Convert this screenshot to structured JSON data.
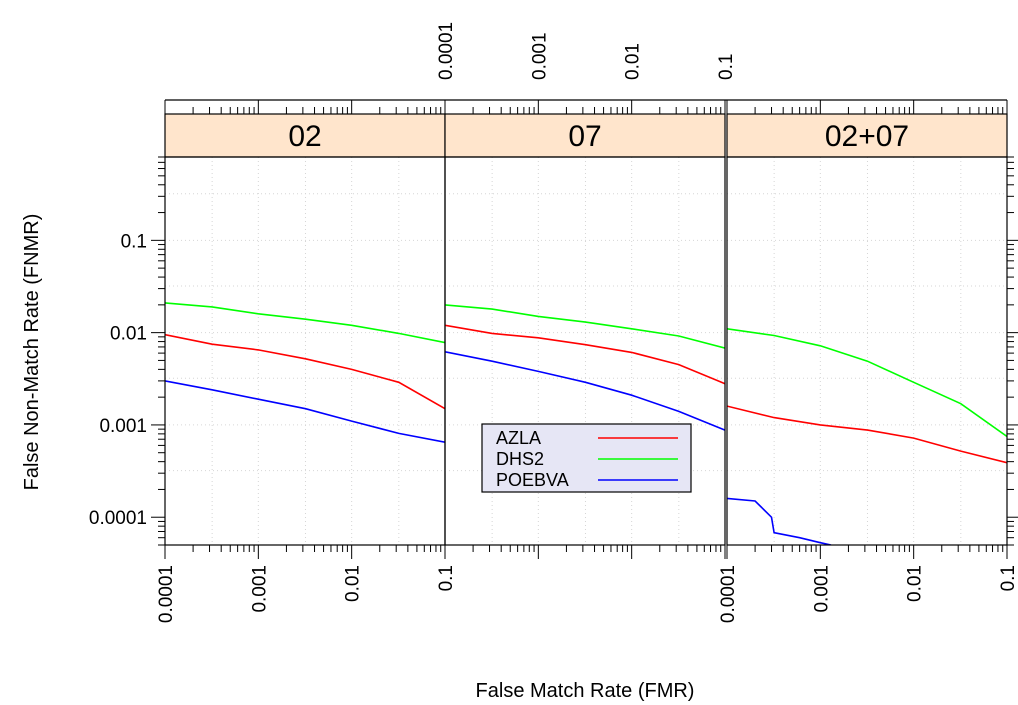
{
  "chart_data": {
    "type": "line",
    "xlabel": "False Match Rate (FMR)",
    "ylabel": "False Non-Match Rate (FNMR)",
    "x_scale": "log",
    "y_scale": "log",
    "xlim": [
      0.0001,
      0.1
    ],
    "ylim": [
      5e-05,
      0.8
    ],
    "x_ticks": [
      {
        "value": 0.0001,
        "label": "0.0001"
      },
      {
        "value": 0.001,
        "label": "0.001"
      },
      {
        "value": 0.01,
        "label": "0.01"
      },
      {
        "value": 0.1,
        "label": "0.1"
      }
    ],
    "y_ticks": [
      {
        "value": 0.1,
        "label": "0.1"
      },
      {
        "value": 0.01,
        "label": "0.01"
      },
      {
        "value": 0.001,
        "label": "0.001"
      },
      {
        "value": 0.0001,
        "label": "0.0001"
      }
    ],
    "grid": true,
    "legend": {
      "placement": "inside-center-bottom",
      "entries": [
        {
          "name": "AZLA",
          "color": "#ff0000"
        },
        {
          "name": "DHS2",
          "color": "#00ff00"
        },
        {
          "name": "POEBVA",
          "color": "#0000ff"
        }
      ]
    },
    "strip_color": "#ffe5cc",
    "panels": [
      {
        "strip": "02",
        "series": [
          {
            "name": "AZLA",
            "color": "#ff0000",
            "x": [
              0.0001,
              0.00032,
              0.001,
              0.0032,
              0.01,
              0.032,
              0.1
            ],
            "y": [
              0.0095,
              0.0075,
              0.0065,
              0.0052,
              0.004,
              0.0029,
              0.0015
            ]
          },
          {
            "name": "DHS2",
            "color": "#00ff00",
            "x": [
              0.0001,
              0.00032,
              0.001,
              0.0032,
              0.01,
              0.032,
              0.1
            ],
            "y": [
              0.021,
              0.019,
              0.016,
              0.014,
              0.012,
              0.0098,
              0.0078
            ]
          },
          {
            "name": "POEBVA",
            "color": "#0000ff",
            "x": [
              0.0001,
              0.00032,
              0.001,
              0.0032,
              0.01,
              0.032,
              0.1
            ],
            "y": [
              0.003,
              0.0024,
              0.0019,
              0.0015,
              0.0011,
              0.00081,
              0.00065
            ]
          }
        ]
      },
      {
        "strip": "07",
        "series": [
          {
            "name": "AZLA",
            "color": "#ff0000",
            "x": [
              0.0001,
              0.00032,
              0.001,
              0.0032,
              0.01,
              0.032,
              0.1
            ],
            "y": [
              0.012,
              0.0098,
              0.0088,
              0.0074,
              0.0061,
              0.0045,
              0.0028
            ]
          },
          {
            "name": "DHS2",
            "color": "#00ff00",
            "x": [
              0.0001,
              0.00032,
              0.001,
              0.0032,
              0.01,
              0.032,
              0.1
            ],
            "y": [
              0.02,
              0.018,
              0.015,
              0.013,
              0.011,
              0.0092,
              0.0068
            ]
          },
          {
            "name": "POEBVA",
            "color": "#0000ff",
            "x": [
              0.0001,
              0.00032,
              0.001,
              0.0032,
              0.01,
              0.032,
              0.1
            ],
            "y": [
              0.0062,
              0.0049,
              0.0038,
              0.0029,
              0.0021,
              0.0014,
              0.00088
            ]
          }
        ]
      },
      {
        "strip": "02+07",
        "series": [
          {
            "name": "AZLA",
            "color": "#ff0000",
            "x": [
              0.0001,
              0.00032,
              0.001,
              0.0032,
              0.01,
              0.032,
              0.1
            ],
            "y": [
              0.0016,
              0.0012,
              0.001,
              0.00088,
              0.00072,
              0.00052,
              0.00039
            ]
          },
          {
            "name": "DHS2",
            "color": "#00ff00",
            "x": [
              0.0001,
              0.00032,
              0.001,
              0.0032,
              0.01,
              0.032,
              0.1
            ],
            "y": [
              0.011,
              0.0093,
              0.0072,
              0.0049,
              0.0029,
              0.0017,
              0.00075
            ]
          },
          {
            "name": "POEBVA",
            "color": "#0000ff",
            "x": [
              0.0001,
              0.0002,
              0.0003,
              0.00032,
              0.0006,
              0.001,
              0.0013
            ],
            "y": [
              0.00016,
              0.00015,
              0.0001,
              6.8e-05,
              6e-05,
              5.3e-05,
              5e-05
            ]
          }
        ]
      }
    ]
  }
}
